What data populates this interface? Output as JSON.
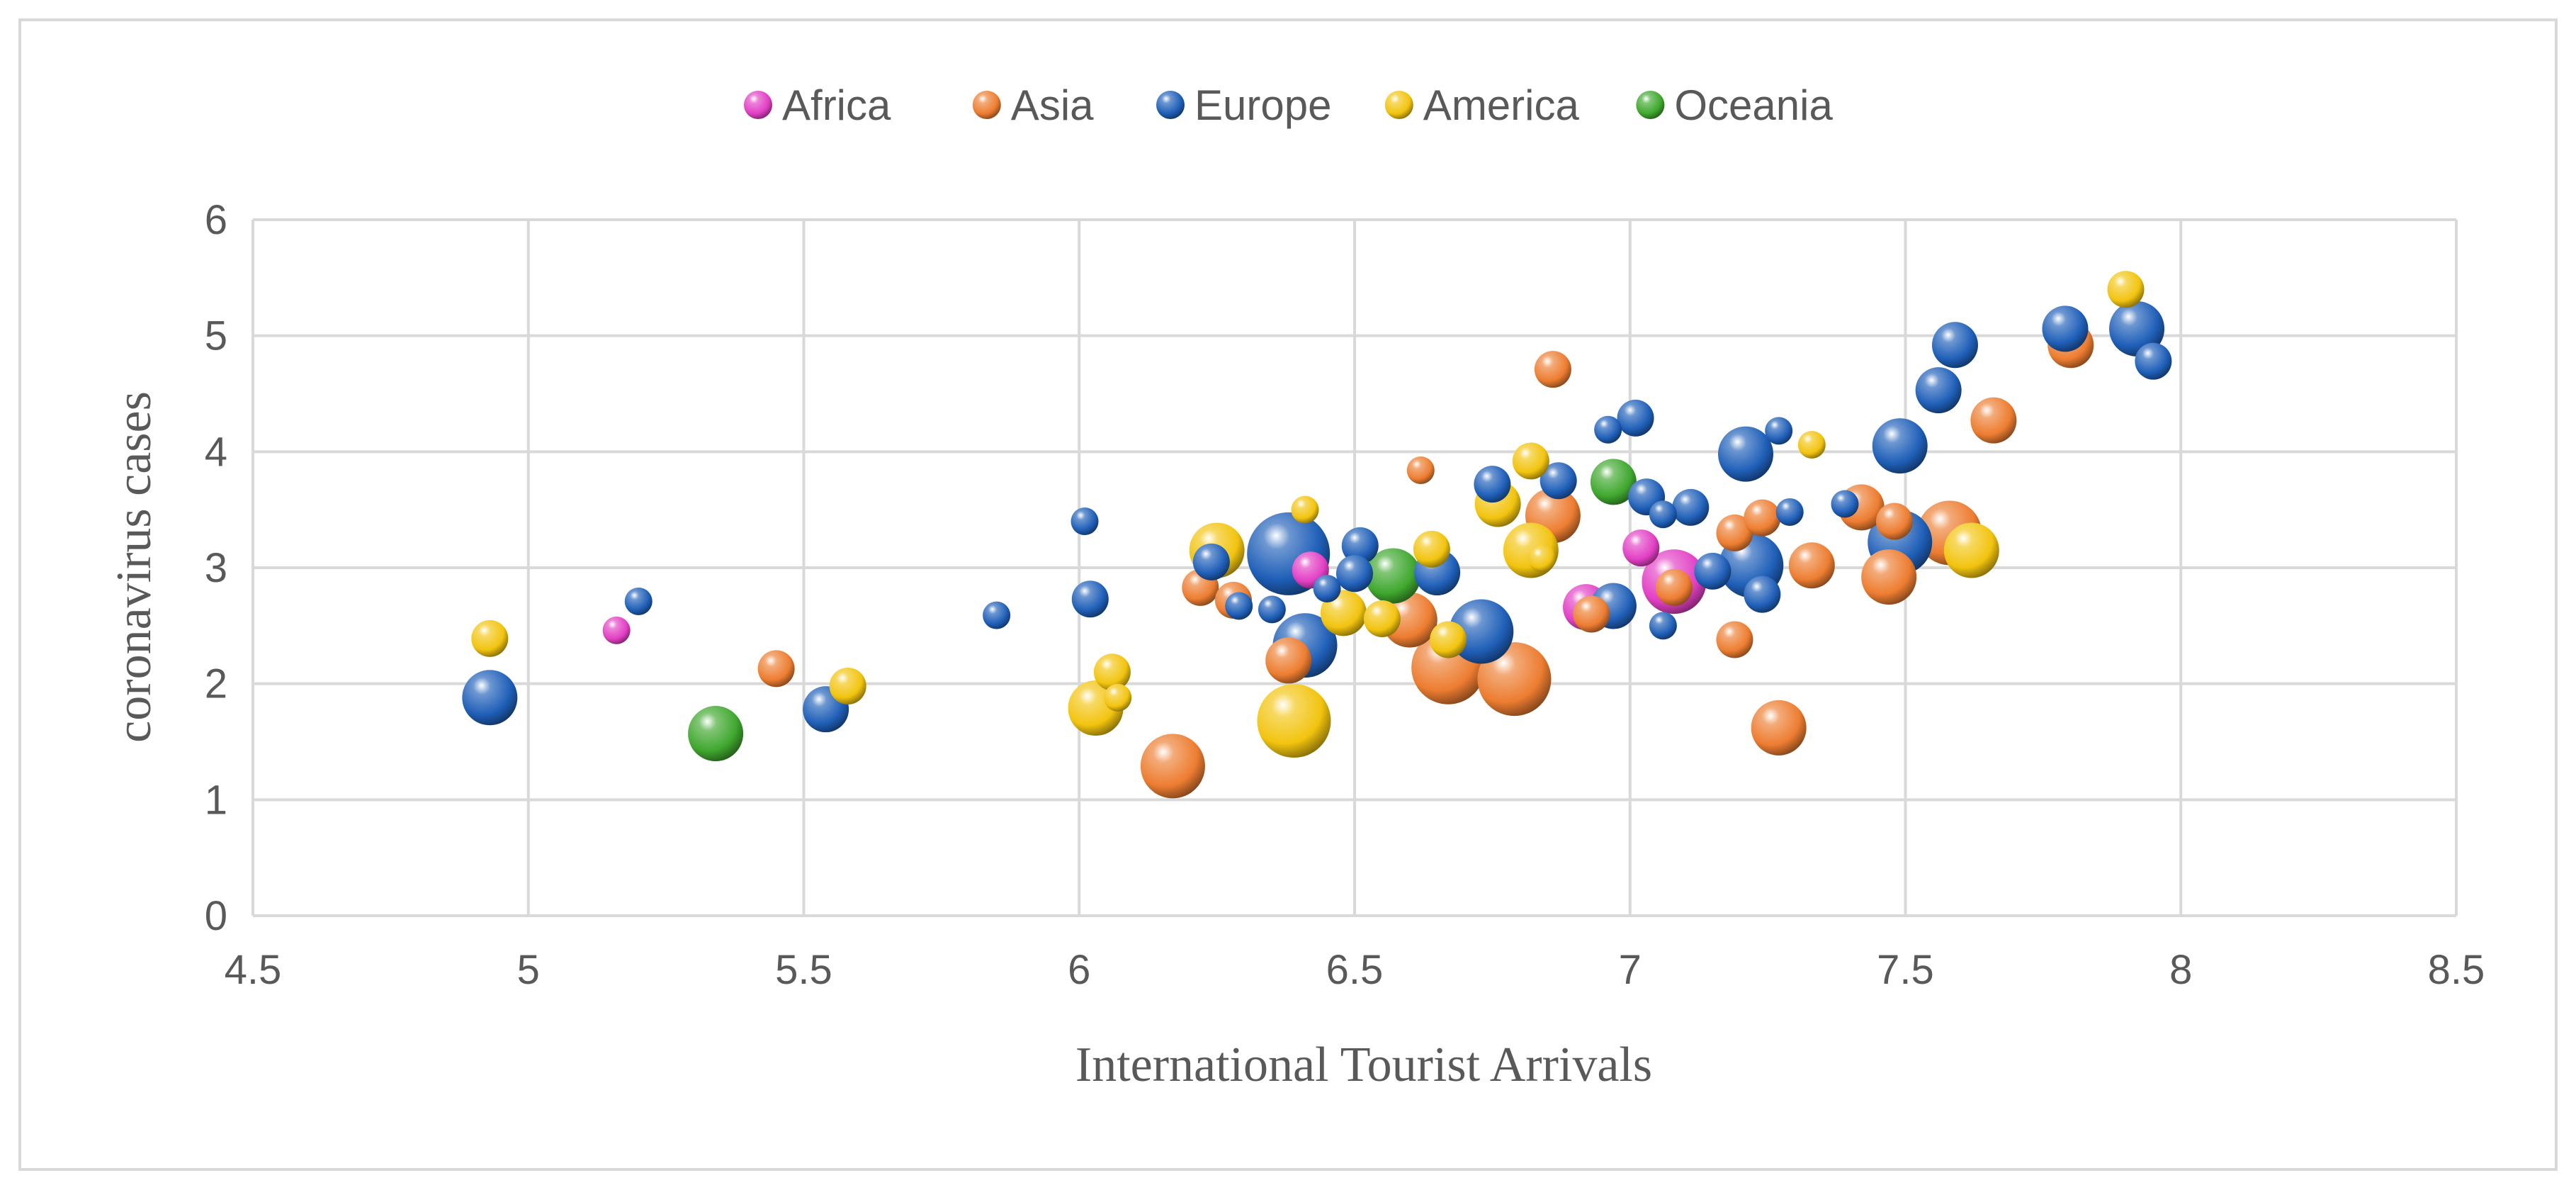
{
  "chart_data": {
    "type": "scatter",
    "title": "",
    "xlabel": "International Tourist Arrivals",
    "ylabel": "coronavirus cases",
    "xlim": [
      4.5,
      8.5
    ],
    "ylim": [
      0,
      6
    ],
    "x_ticks": [
      "4.5",
      "5",
      "5.5",
      "6",
      "6.5",
      "7",
      "7.5",
      "8",
      "8.5"
    ],
    "y_ticks": [
      "0",
      "1",
      "2",
      "3",
      "4",
      "5",
      "6"
    ],
    "grid": "on",
    "legend_position": "top",
    "series": [
      {
        "name": "Africa",
        "color": "#e23fc4",
        "points": [
          {
            "x": 5.16,
            "y": 2.46,
            "s": 1
          },
          {
            "x": 7.02,
            "y": 3.17,
            "s": 2
          },
          {
            "x": 6.92,
            "y": 2.66,
            "s": 3
          },
          {
            "x": 7.08,
            "y": 2.88,
            "s": 5
          },
          {
            "x": 6.42,
            "y": 2.98,
            "s": 2
          }
        ]
      },
      {
        "name": "Asia",
        "color": "#ed7d31",
        "points": [
          {
            "x": 5.45,
            "y": 2.13,
            "s": 2
          },
          {
            "x": 6.17,
            "y": 1.29,
            "s": 5
          },
          {
            "x": 6.22,
            "y": 2.83,
            "s": 2
          },
          {
            "x": 6.28,
            "y": 2.72,
            "s": 2
          },
          {
            "x": 6.38,
            "y": 2.2,
            "s": 3
          },
          {
            "x": 6.6,
            "y": 2.55,
            "s": 4
          },
          {
            "x": 6.62,
            "y": 3.84,
            "s": 1
          },
          {
            "x": 6.67,
            "y": 2.14,
            "s": 6
          },
          {
            "x": 6.79,
            "y": 2.04,
            "s": 6
          },
          {
            "x": 6.86,
            "y": 4.71,
            "s": 2
          },
          {
            "x": 6.86,
            "y": 3.45,
            "s": 4
          },
          {
            "x": 6.93,
            "y": 2.6,
            "s": 2
          },
          {
            "x": 7.08,
            "y": 2.83,
            "s": 2
          },
          {
            "x": 7.19,
            "y": 2.38,
            "s": 2
          },
          {
            "x": 7.19,
            "y": 3.3,
            "s": 2
          },
          {
            "x": 7.24,
            "y": 3.43,
            "s": 2
          },
          {
            "x": 7.27,
            "y": 1.62,
            "s": 4
          },
          {
            "x": 7.33,
            "y": 3.02,
            "s": 3
          },
          {
            "x": 7.42,
            "y": 3.52,
            "s": 3
          },
          {
            "x": 7.48,
            "y": 3.4,
            "s": 2
          },
          {
            "x": 7.47,
            "y": 2.92,
            "s": 4
          },
          {
            "x": 7.58,
            "y": 3.3,
            "s": 5
          },
          {
            "x": 7.66,
            "y": 4.27,
            "s": 3
          },
          {
            "x": 7.8,
            "y": 4.92,
            "s": 3
          }
        ]
      },
      {
        "name": "Europe",
        "color": "#1f5fb8",
        "points": [
          {
            "x": 4.93,
            "y": 1.88,
            "s": 4
          },
          {
            "x": 5.2,
            "y": 2.71,
            "s": 1
          },
          {
            "x": 5.54,
            "y": 1.78,
            "s": 3
          },
          {
            "x": 5.85,
            "y": 2.59,
            "s": 1
          },
          {
            "x": 6.01,
            "y": 3.4,
            "s": 1
          },
          {
            "x": 6.02,
            "y": 2.73,
            "s": 2
          },
          {
            "x": 6.24,
            "y": 3.05,
            "s": 2
          },
          {
            "x": 6.29,
            "y": 2.67,
            "s": 1
          },
          {
            "x": 6.35,
            "y": 2.64,
            "s": 1
          },
          {
            "x": 6.38,
            "y": 3.12,
            "s": 7
          },
          {
            "x": 6.41,
            "y": 2.33,
            "s": 5
          },
          {
            "x": 6.45,
            "y": 2.82,
            "s": 1
          },
          {
            "x": 6.51,
            "y": 3.19,
            "s": 2
          },
          {
            "x": 6.5,
            "y": 2.95,
            "s": 2
          },
          {
            "x": 6.65,
            "y": 2.96,
            "s": 3
          },
          {
            "x": 6.73,
            "y": 2.45,
            "s": 5
          },
          {
            "x": 6.75,
            "y": 3.72,
            "s": 2
          },
          {
            "x": 6.87,
            "y": 3.75,
            "s": 2
          },
          {
            "x": 6.96,
            "y": 4.19,
            "s": 1
          },
          {
            "x": 6.97,
            "y": 2.67,
            "s": 3
          },
          {
            "x": 7.01,
            "y": 4.29,
            "s": 2
          },
          {
            "x": 7.03,
            "y": 3.61,
            "s": 2
          },
          {
            "x": 7.06,
            "y": 3.46,
            "s": 1
          },
          {
            "x": 7.06,
            "y": 2.5,
            "s": 1
          },
          {
            "x": 7.11,
            "y": 3.52,
            "s": 2
          },
          {
            "x": 7.15,
            "y": 2.97,
            "s": 2
          },
          {
            "x": 7.21,
            "y": 3.98,
            "s": 4
          },
          {
            "x": 7.22,
            "y": 3.02,
            "s": 5
          },
          {
            "x": 7.24,
            "y": 2.77,
            "s": 2
          },
          {
            "x": 7.27,
            "y": 4.18,
            "s": 1
          },
          {
            "x": 7.29,
            "y": 3.48,
            "s": 1
          },
          {
            "x": 7.39,
            "y": 3.55,
            "s": 1
          },
          {
            "x": 7.49,
            "y": 3.22,
            "s": 5
          },
          {
            "x": 7.49,
            "y": 4.05,
            "s": 4
          },
          {
            "x": 7.56,
            "y": 4.53,
            "s": 3
          },
          {
            "x": 7.59,
            "y": 4.92,
            "s": 3
          },
          {
            "x": 7.79,
            "y": 5.06,
            "s": 3
          },
          {
            "x": 7.92,
            "y": 5.06,
            "s": 4
          },
          {
            "x": 7.95,
            "y": 4.78,
            "s": 2
          }
        ]
      },
      {
        "name": "America",
        "color": "#f2c40f",
        "points": [
          {
            "x": 4.93,
            "y": 2.39,
            "s": 2
          },
          {
            "x": 5.58,
            "y": 1.98,
            "s": 2
          },
          {
            "x": 6.03,
            "y": 1.79,
            "s": 4
          },
          {
            "x": 6.06,
            "y": 2.1,
            "s": 2
          },
          {
            "x": 6.07,
            "y": 1.88,
            "s": 1
          },
          {
            "x": 6.25,
            "y": 3.15,
            "s": 4
          },
          {
            "x": 6.39,
            "y": 1.68,
            "s": 6
          },
          {
            "x": 6.41,
            "y": 3.5,
            "s": 1
          },
          {
            "x": 6.48,
            "y": 2.61,
            "s": 3
          },
          {
            "x": 6.55,
            "y": 2.56,
            "s": 2
          },
          {
            "x": 6.64,
            "y": 3.16,
            "s": 2
          },
          {
            "x": 6.67,
            "y": 2.38,
            "s": 2
          },
          {
            "x": 6.76,
            "y": 3.55,
            "s": 3
          },
          {
            "x": 6.82,
            "y": 3.92,
            "s": 2
          },
          {
            "x": 6.82,
            "y": 3.15,
            "s": 4
          },
          {
            "x": 6.84,
            "y": 3.08,
            "s": 1
          },
          {
            "x": 7.33,
            "y": 4.06,
            "s": 1
          },
          {
            "x": 7.62,
            "y": 3.15,
            "s": 4
          },
          {
            "x": 7.9,
            "y": 5.4,
            "s": 2
          }
        ]
      },
      {
        "name": "Oceania",
        "color": "#3fa82e",
        "points": [
          {
            "x": 5.34,
            "y": 1.57,
            "s": 4
          },
          {
            "x": 6.57,
            "y": 2.93,
            "s": 4
          },
          {
            "x": 6.97,
            "y": 3.74,
            "s": 3
          }
        ]
      }
    ]
  }
}
